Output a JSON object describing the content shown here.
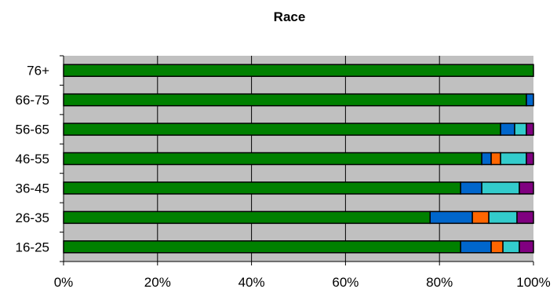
{
  "chart_data": {
    "type": "bar",
    "orientation": "horizontal",
    "stacked": "percent",
    "title": "Race",
    "xlabel": "",
    "ylabel": "",
    "xlim": [
      0,
      100
    ],
    "x_ticks": [
      "0%",
      "20%",
      "40%",
      "60%",
      "80%",
      "100%"
    ],
    "grid": "vertical",
    "legend": "none",
    "categories": [
      "76+",
      "66-75",
      "56-65",
      "46-55",
      "36-45",
      "26-35",
      "16-25"
    ],
    "series": [
      {
        "color": "#008000",
        "values": [
          100,
          98.5,
          93.0,
          89.0,
          84.5,
          78.0,
          84.5
        ]
      },
      {
        "color": "#0066cc",
        "values": [
          0,
          1.5,
          3.0,
          2.0,
          4.5,
          9.0,
          6.5
        ]
      },
      {
        "color": "#ff6600",
        "values": [
          0,
          0,
          0,
          2.0,
          0,
          3.5,
          2.5
        ]
      },
      {
        "color": "#33cccc",
        "values": [
          0,
          0,
          2.5,
          5.5,
          8.0,
          6.0,
          3.5
        ]
      },
      {
        "color": "#800080",
        "values": [
          0,
          0,
          1.5,
          1.5,
          3.0,
          3.5,
          3.0
        ]
      }
    ],
    "plot_background": "#c0c0c0"
  }
}
